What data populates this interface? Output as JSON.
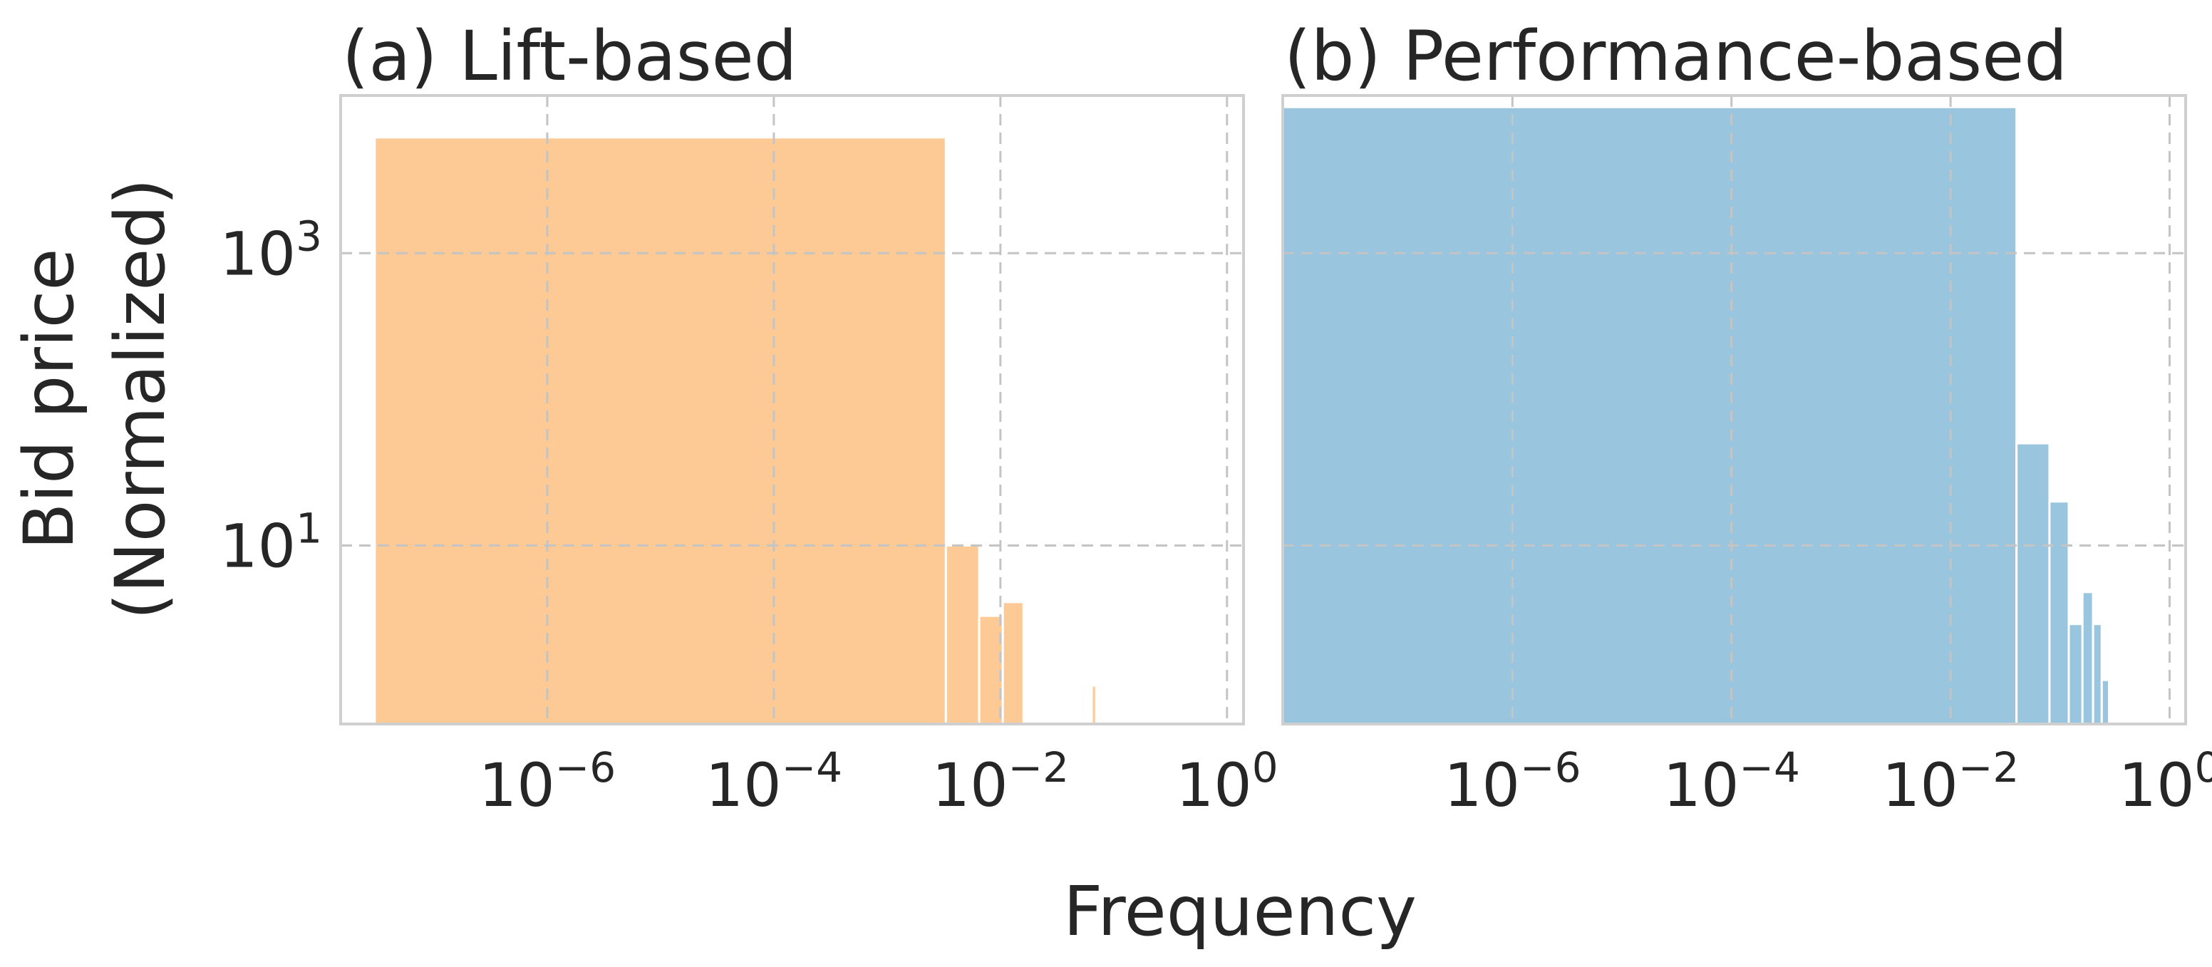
{
  "figure": {
    "ylabel_line1": "Bid price",
    "ylabel_line2": "(Normalized)",
    "xlabel": "Frequency"
  },
  "chart_data": [
    {
      "type": "bar",
      "title": "(a) Lift-based",
      "color": "#fdc995",
      "x_scale": "log",
      "y_scale": "log",
      "xlim": [
        1.5e-08,
        1.4
      ],
      "ylim": [
        0.6,
        12000
      ],
      "x_ticks": [
        {
          "base": "10",
          "exp": "−6",
          "value": 1e-06
        },
        {
          "base": "10",
          "exp": "−4",
          "value": 0.0001
        },
        {
          "base": "10",
          "exp": "−2",
          "value": 0.01
        },
        {
          "base": "10",
          "exp": "0",
          "value": 1
        }
      ],
      "y_ticks": [
        {
          "base": "10",
          "exp": "1",
          "value": 10
        },
        {
          "base": "10",
          "exp": "3",
          "value": 1000
        }
      ],
      "grid": true,
      "bars": [
        {
          "x0": 3e-08,
          "x1": 0.0033,
          "y": 6200
        },
        {
          "x0": 0.0033,
          "x1": 0.0065,
          "y": 10
        },
        {
          "x0": 0.0065,
          "x1": 0.0105,
          "y": 3.3
        },
        {
          "x0": 0.0105,
          "x1": 0.016,
          "y": 4.1
        },
        {
          "x0": 0.064,
          "x1": 0.07,
          "y": 1.1
        }
      ]
    },
    {
      "type": "bar",
      "title": "(b) Performance-based",
      "color": "#99c5de",
      "x_scale": "log",
      "y_scale": "log",
      "xlim": [
        8e-09,
        1.4
      ],
      "ylim": [
        0.6,
        12000
      ],
      "x_ticks": [
        {
          "base": "10",
          "exp": "−6",
          "value": 1e-06
        },
        {
          "base": "10",
          "exp": "−4",
          "value": 0.0001
        },
        {
          "base": "10",
          "exp": "−2",
          "value": 0.01
        },
        {
          "base": "10",
          "exp": "0",
          "value": 1
        }
      ],
      "y_ticks": [
        {
          "base": "10",
          "exp": "1",
          "value": 10
        },
        {
          "base": "10",
          "exp": "3",
          "value": 1000
        }
      ],
      "grid": true,
      "bars": [
        {
          "x0": 8e-09,
          "x1": 0.04,
          "y": 10000
        },
        {
          "x0": 0.04,
          "x1": 0.08,
          "y": 50
        },
        {
          "x0": 0.08,
          "x1": 0.12,
          "y": 20
        },
        {
          "x0": 0.12,
          "x1": 0.16,
          "y": 2.9
        },
        {
          "x0": 0.16,
          "x1": 0.2,
          "y": 4.8
        },
        {
          "x0": 0.2,
          "x1": 0.24,
          "y": 2.9
        },
        {
          "x0": 0.24,
          "x1": 0.28,
          "y": 1.2
        },
        {
          "x0": 0.98,
          "x1": 1.02,
          "y": 1.1
        }
      ]
    }
  ]
}
